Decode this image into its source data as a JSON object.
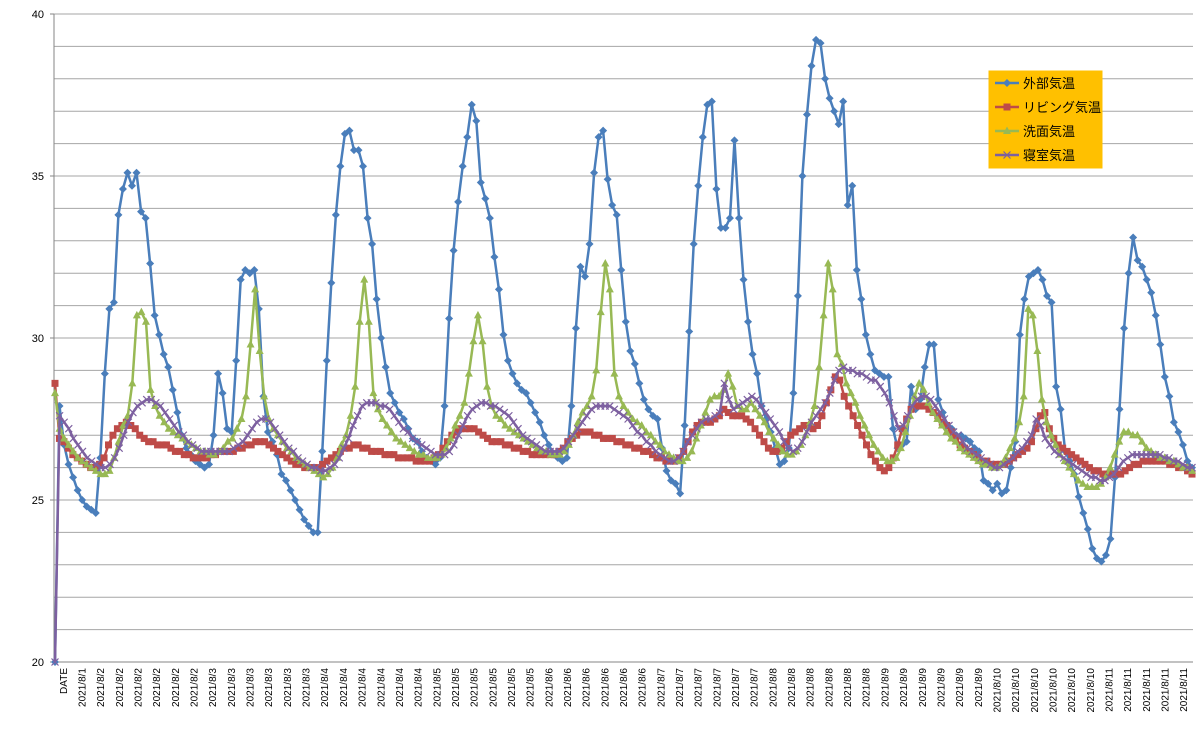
{
  "chart_data": {
    "type": "line",
    "ylim": [
      20,
      40
    ],
    "yticks": [
      "20",
      "25",
      "30",
      "35",
      "40"
    ],
    "x_labels": [
      "DATE",
      "2021/8/1",
      "2021/8/2",
      "2021/8/2",
      "2021/8/2",
      "2021/8/2",
      "2021/8/2",
      "2021/8/2",
      "2021/8/3",
      "2021/8/3",
      "2021/8/3",
      "2021/8/3",
      "2021/8/3",
      "2021/8/3",
      "2021/8/4",
      "2021/8/4",
      "2021/8/4",
      "2021/8/4",
      "2021/8/4",
      "2021/8/4",
      "2021/8/5",
      "2021/8/5",
      "2021/8/5",
      "2021/8/5",
      "2021/8/5",
      "2021/8/5",
      "2021/8/6",
      "2021/8/6",
      "2021/8/6",
      "2021/8/6",
      "2021/8/6",
      "2021/8/6",
      "2021/8/7",
      "2021/8/7",
      "2021/8/7",
      "2021/8/7",
      "2021/8/7",
      "2021/8/7",
      "2021/8/8",
      "2021/8/8",
      "2021/8/8",
      "2021/8/8",
      "2021/8/8",
      "2021/8/8",
      "2021/8/9",
      "2021/8/9",
      "2021/8/9",
      "2021/8/9",
      "2021/8/9",
      "2021/8/9",
      "2021/8/10",
      "2021/8/10",
      "2021/8/10",
      "2021/8/10",
      "2021/8/10",
      "2021/8/10",
      "2021/8/11",
      "2021/8/11",
      "2021/8/11",
      "2021/8/11",
      "2021/8/11"
    ],
    "legend_position": "top-right",
    "grid": true,
    "series": [
      {
        "name": "外部気温",
        "color": "#4a7ebb",
        "marker": "diamond",
        "values": [
          20,
          27.9,
          26.7,
          26.1,
          25.7,
          25.3,
          25.0,
          24.8,
          24.7,
          24.6,
          26.3,
          28.9,
          30.9,
          31.1,
          33.8,
          34.6,
          35.1,
          34.7,
          35.1,
          33.9,
          33.7,
          32.3,
          30.7,
          30.1,
          29.5,
          29.1,
          28.4,
          27.7,
          27.0,
          26.6,
          26.4,
          26.2,
          26.1,
          26.0,
          26.1,
          27.0,
          28.9,
          28.3,
          27.2,
          27.1,
          29.3,
          31.8,
          32.1,
          32.0,
          32.1,
          30.9,
          28.2,
          27.1,
          26.8,
          26.4,
          25.8,
          25.6,
          25.3,
          25.0,
          24.7,
          24.4,
          24.2,
          24.0,
          24.0,
          26.5,
          29.3,
          31.7,
          33.8,
          35.3,
          36.3,
          36.4,
          35.8,
          35.8,
          35.3,
          33.7,
          32.9,
          31.2,
          30.0,
          29.1,
          28.3,
          28.0,
          27.7,
          27.5,
          27.2,
          26.9,
          26.8,
          26.5,
          26.3,
          26.2,
          26.1,
          26.3,
          27.9,
          30.6,
          32.7,
          34.2,
          35.3,
          36.2,
          37.2,
          36.7,
          34.8,
          34.3,
          33.7,
          32.5,
          31.5,
          30.1,
          29.3,
          28.9,
          28.6,
          28.4,
          28.3,
          28.0,
          27.7,
          27.4,
          27.0,
          26.7,
          26.4,
          26.3,
          26.2,
          26.3,
          27.9,
          30.3,
          32.2,
          31.9,
          32.9,
          35.1,
          36.2,
          36.4,
          34.9,
          34.1,
          33.8,
          32.1,
          30.5,
          29.6,
          29.2,
          28.6,
          28.1,
          27.8,
          27.6,
          27.5,
          26.6,
          25.9,
          25.6,
          25.5,
          25.2,
          27.3,
          30.2,
          32.9,
          34.7,
          36.2,
          37.2,
          37.3,
          34.6,
          33.4,
          33.4,
          33.7,
          36.1,
          33.7,
          31.8,
          30.5,
          29.5,
          28.9,
          27.9,
          27.5,
          27.1,
          26.6,
          26.1,
          26.2,
          26.6,
          28.3,
          31.3,
          35.0,
          36.9,
          38.4,
          39.2,
          39.1,
          38.0,
          37.4,
          37.0,
          36.6,
          37.3,
          34.1,
          34.7,
          32.1,
          31.2,
          30.1,
          29.5,
          29.0,
          28.9,
          28.8,
          28.8,
          27.2,
          26.6,
          26.7,
          26.8,
          28.5,
          27.8,
          28.1,
          29.1,
          29.8,
          29.8,
          28.1,
          27.7,
          27.3,
          27.2,
          27.0,
          27.0,
          26.9,
          26.8,
          26.6,
          26.5,
          25.6,
          25.5,
          25.3,
          25.5,
          25.2,
          25.3,
          26.0,
          26.8,
          30.1,
          31.2,
          31.9,
          32.0,
          32.1,
          31.8,
          31.3,
          31.1,
          28.5,
          27.8,
          26.5,
          26.2,
          25.8,
          25.1,
          24.6,
          24.1,
          23.5,
          23.2,
          23.1,
          23.3,
          23.8,
          25.7,
          27.8,
          30.3,
          32.0,
          33.1,
          32.4,
          32.2,
          31.8,
          31.4,
          30.7,
          29.8,
          28.8,
          28.2,
          27.4,
          27.1,
          26.7,
          26.2,
          26.0
        ]
      },
      {
        "name": "リビング気温",
        "color": "#be4b48",
        "marker": "square",
        "values": [
          28.6,
          26.9,
          26.8,
          26.6,
          26.4,
          26.3,
          26.2,
          26.1,
          26.0,
          26.0,
          26.1,
          26.3,
          26.7,
          27.0,
          27.2,
          27.3,
          27.4,
          27.3,
          27.2,
          27.0,
          26.9,
          26.8,
          26.8,
          26.7,
          26.7,
          26.7,
          26.6,
          26.5,
          26.5,
          26.4,
          26.4,
          26.3,
          26.3,
          26.3,
          26.3,
          26.4,
          26.4,
          26.5,
          26.5,
          26.5,
          26.5,
          26.6,
          26.6,
          26.7,
          26.7,
          26.8,
          26.8,
          26.8,
          26.7,
          26.6,
          26.5,
          26.4,
          26.3,
          26.2,
          26.1,
          26.1,
          26.0,
          26.0,
          26.0,
          26.0,
          26.1,
          26.2,
          26.3,
          26.4,
          26.5,
          26.6,
          26.6,
          26.7,
          26.7,
          26.6,
          26.6,
          26.5,
          26.5,
          26.5,
          26.4,
          26.4,
          26.4,
          26.3,
          26.3,
          26.3,
          26.3,
          26.2,
          26.2,
          26.2,
          26.2,
          26.3,
          26.4,
          26.6,
          26.8,
          27.0,
          27.1,
          27.2,
          27.2,
          27.2,
          27.2,
          27.1,
          27.0,
          26.9,
          26.8,
          26.8,
          26.8,
          26.7,
          26.7,
          26.6,
          26.6,
          26.5,
          26.5,
          26.4,
          26.4,
          26.4,
          26.4,
          26.4,
          26.4,
          26.5,
          26.6,
          26.8,
          26.9,
          27.0,
          27.1,
          27.1,
          27.1,
          27.0,
          27.0,
          26.9,
          26.9,
          26.9,
          26.8,
          26.8,
          26.7,
          26.7,
          26.6,
          26.6,
          26.5,
          26.5,
          26.4,
          26.3,
          26.3,
          26.2,
          26.2,
          26.2,
          26.3,
          26.5,
          26.8,
          27.1,
          27.3,
          27.4,
          27.4,
          27.4,
          27.5,
          27.6,
          27.8,
          27.7,
          27.6,
          27.6,
          27.6,
          27.5,
          27.4,
          27.2,
          27.0,
          26.8,
          26.6,
          26.5,
          26.5,
          26.6,
          26.8,
          27.0,
          27.1,
          27.2,
          27.3,
          27.3,
          27.2,
          27.3,
          27.6,
          28.0,
          28.4,
          28.8,
          28.7,
          28.2,
          27.9,
          27.6,
          27.3,
          27.0,
          26.7,
          26.4,
          26.2,
          26.0,
          25.9,
          26.0,
          26.3,
          26.7,
          27.2,
          27.5,
          27.8,
          27.9,
          27.9,
          27.9,
          27.8,
          27.7,
          27.6,
          27.4,
          27.3,
          27.1,
          26.9,
          26.7,
          26.6,
          26.5,
          26.4,
          26.3,
          26.2,
          26.2,
          26.1,
          26.1,
          26.1,
          26.1,
          26.2,
          26.3,
          26.4,
          26.5,
          26.6,
          26.8,
          27.2,
          27.6,
          27.7,
          27.2,
          26.9,
          26.7,
          26.6,
          26.5,
          26.4,
          26.3,
          26.2,
          26.1,
          26.0,
          25.9,
          25.9,
          25.8,
          25.8,
          25.8,
          25.8,
          25.8,
          25.9,
          26.0,
          26.1,
          26.1,
          26.2,
          26.2,
          26.2,
          26.2,
          26.2,
          26.2,
          26.1,
          26.1,
          26.0,
          26.0,
          25.9,
          25.8
        ]
      },
      {
        "name": "洗面気温",
        "color": "#98b954",
        "marker": "triangle",
        "values": [
          28.3,
          27.2,
          26.9,
          26.7,
          26.5,
          26.3,
          26.2,
          26.1,
          26.0,
          25.9,
          25.8,
          25.8,
          25.9,
          26.3,
          26.8,
          27.3,
          27.6,
          28.6,
          30.7,
          30.8,
          30.5,
          28.4,
          27.9,
          27.6,
          27.4,
          27.2,
          27.1,
          27.0,
          26.9,
          26.8,
          26.7,
          26.6,
          26.5,
          26.5,
          26.4,
          26.4,
          26.5,
          26.6,
          26.8,
          26.9,
          27.2,
          27.5,
          28.2,
          29.8,
          31.5,
          29.6,
          28.2,
          27.5,
          27.2,
          27.0,
          26.8,
          26.6,
          26.5,
          26.3,
          26.2,
          26.1,
          26.0,
          25.9,
          25.8,
          25.7,
          25.8,
          26.0,
          26.3,
          26.7,
          27.0,
          27.6,
          28.5,
          30.5,
          31.8,
          30.5,
          28.3,
          27.8,
          27.5,
          27.3,
          27.1,
          26.9,
          26.8,
          26.7,
          26.6,
          26.5,
          26.4,
          26.4,
          26.3,
          26.3,
          26.3,
          26.4,
          26.6,
          26.9,
          27.3,
          27.6,
          28.0,
          28.9,
          29.9,
          30.7,
          29.9,
          28.5,
          27.9,
          27.6,
          27.5,
          27.3,
          27.2,
          27.1,
          27.0,
          26.9,
          26.8,
          26.7,
          26.6,
          26.5,
          26.5,
          26.4,
          26.4,
          26.4,
          26.5,
          26.7,
          27.0,
          27.4,
          27.7,
          27.9,
          28.2,
          29.0,
          30.8,
          32.3,
          31.5,
          28.9,
          28.2,
          27.9,
          27.7,
          27.5,
          27.4,
          27.3,
          27.1,
          27.0,
          26.8,
          26.7,
          26.5,
          26.4,
          26.3,
          26.2,
          26.2,
          26.3,
          26.5,
          26.9,
          27.3,
          27.7,
          28.1,
          28.2,
          28.2,
          28.4,
          28.9,
          28.5,
          27.9,
          27.8,
          27.8,
          28.0,
          27.8,
          27.6,
          27.4,
          27.1,
          26.9,
          26.7,
          26.5,
          26.4,
          26.4,
          26.5,
          26.7,
          27.0,
          27.4,
          27.9,
          29.1,
          30.7,
          32.3,
          31.5,
          29.5,
          29.2,
          28.6,
          28.3,
          28.0,
          27.6,
          27.3,
          27.0,
          26.7,
          26.5,
          26.3,
          26.2,
          26.2,
          26.3,
          26.6,
          27.1,
          27.6,
          28.2,
          28.6,
          28.4,
          28.0,
          27.7,
          27.5,
          27.3,
          27.1,
          26.9,
          26.8,
          26.6,
          26.5,
          26.4,
          26.3,
          26.2,
          26.1,
          26.1,
          26.0,
          26.0,
          26.1,
          26.3,
          26.6,
          26.9,
          27.4,
          28.2,
          30.9,
          30.7,
          29.6,
          28.1,
          27.4,
          27.0,
          26.7,
          26.4,
          26.2,
          26.0,
          25.8,
          25.6,
          25.5,
          25.4,
          25.4,
          25.4,
          25.5,
          25.7,
          26.0,
          26.4,
          26.8,
          27.1,
          27.1,
          27.0,
          27.0,
          26.8,
          26.6,
          26.5,
          26.4,
          26.3,
          26.3,
          26.2,
          26.2,
          26.1,
          26.0,
          26.0,
          25.9
        ]
      },
      {
        "name": "寝室気温",
        "color": "#7d60a0",
        "marker": "x",
        "values": [
          20,
          27.6,
          27.4,
          27.2,
          26.9,
          26.7,
          26.5,
          26.3,
          26.2,
          26.1,
          26.0,
          26.0,
          26.1,
          26.3,
          26.6,
          27.0,
          27.4,
          27.7,
          27.9,
          28.0,
          28.1,
          28.1,
          28.0,
          27.9,
          27.7,
          27.5,
          27.3,
          27.1,
          27.0,
          26.8,
          26.7,
          26.6,
          26.5,
          26.5,
          26.5,
          26.5,
          26.5,
          26.5,
          26.5,
          26.6,
          26.7,
          26.8,
          27.0,
          27.2,
          27.4,
          27.5,
          27.5,
          27.4,
          27.2,
          27.0,
          26.8,
          26.6,
          26.5,
          26.3,
          26.2,
          26.1,
          26.0,
          26.0,
          25.9,
          25.9,
          26.0,
          26.1,
          26.3,
          26.6,
          26.9,
          27.3,
          27.6,
          27.9,
          28.0,
          28.0,
          28.0,
          27.9,
          27.9,
          27.8,
          27.6,
          27.4,
          27.2,
          27.1,
          26.9,
          26.8,
          26.7,
          26.6,
          26.5,
          26.4,
          26.4,
          26.4,
          26.5,
          26.7,
          27.0,
          27.3,
          27.6,
          27.8,
          27.9,
          28.0,
          28.0,
          27.9,
          27.9,
          27.8,
          27.7,
          27.6,
          27.4,
          27.2,
          27.0,
          26.9,
          26.8,
          26.7,
          26.6,
          26.5,
          26.5,
          26.5,
          26.5,
          26.6,
          26.8,
          27.0,
          27.2,
          27.4,
          27.6,
          27.8,
          27.9,
          27.9,
          27.9,
          27.9,
          27.8,
          27.7,
          27.6,
          27.5,
          27.3,
          27.1,
          27.0,
          26.8,
          26.7,
          26.5,
          26.4,
          26.3,
          26.2,
          26.2,
          26.3,
          26.5,
          26.8,
          27.0,
          27.2,
          27.4,
          27.5,
          27.5,
          27.6,
          27.7,
          28.6,
          28.1,
          27.8,
          27.9,
          28.0,
          28.1,
          28.2,
          28.1,
          27.9,
          27.7,
          27.5,
          27.3,
          27.1,
          26.8,
          26.6,
          26.5,
          26.6,
          26.8,
          27.1,
          27.4,
          27.6,
          27.8,
          28.0,
          28.3,
          28.7,
          29.0,
          29.1,
          29.0,
          29.0,
          28.9,
          28.9,
          28.8,
          28.7,
          28.7,
          28.5,
          28.3,
          28.0,
          27.6,
          27.2,
          27.3,
          27.6,
          27.9,
          28.1,
          28.2,
          28.2,
          28.1,
          27.9,
          27.7,
          27.5,
          27.3,
          27.1,
          27.0,
          26.8,
          26.6,
          26.5,
          26.4,
          26.3,
          26.2,
          26.1,
          26.0,
          26.0,
          26.1,
          26.2,
          26.3,
          26.5,
          26.6,
          26.8,
          27.0,
          27.5,
          27.3,
          26.9,
          26.7,
          26.5,
          26.4,
          26.3,
          26.2,
          26.1,
          26.0,
          25.9,
          25.8,
          25.7,
          25.7,
          25.6,
          25.6,
          25.7,
          25.8,
          26.0,
          26.2,
          26.3,
          26.4,
          26.4,
          26.4,
          26.4,
          26.4,
          26.4,
          26.4,
          26.3,
          26.3,
          26.2,
          26.2,
          26.1,
          26.0,
          26.0
        ]
      }
    ]
  }
}
